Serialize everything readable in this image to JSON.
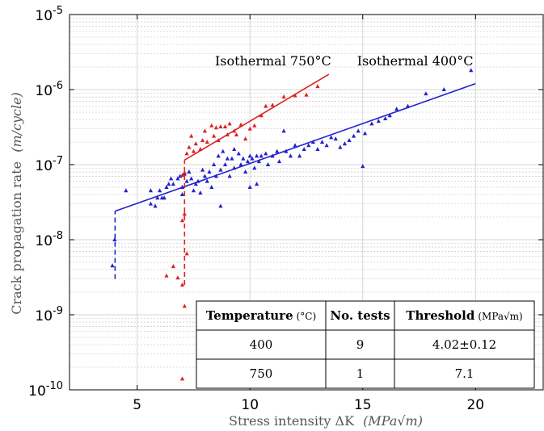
{
  "chart_data": {
    "type": "scatter",
    "x_scale": "linear",
    "y_scale": "log",
    "xlim": [
      2,
      23
    ],
    "ylim": [
      1e-10,
      1e-05
    ],
    "grid": true,
    "xlabel": "Stress intensity ΔK",
    "xlabel_units": "(MPa√m)",
    "ylabel": "Crack propagation rate",
    "ylabel_units": "(m/cycle)",
    "x_ticks": [
      5,
      10,
      15,
      20
    ],
    "x_tick_labels": [
      "5",
      "10",
      "15",
      "20"
    ],
    "y_ticks": [
      1e-10,
      1e-09,
      1e-08,
      1e-07,
      1e-06,
      1e-05
    ],
    "y_tick_labels": [
      {
        "base": "10",
        "exp": "-10"
      },
      {
        "base": "10",
        "exp": "-9"
      },
      {
        "base": "10",
        "exp": "-8"
      },
      {
        "base": "10",
        "exp": "-7"
      },
      {
        "base": "10",
        "exp": "-6"
      },
      {
        "base": "10",
        "exp": "-5"
      }
    ],
    "annotations": [
      {
        "text": "Isothermal 750°C",
        "x": 13.6,
        "y": 2.1e-06,
        "color": "#000000"
      },
      {
        "text": "Isothermal 400°C",
        "x": 19.9,
        "y": 2.1e-06,
        "color": "#000000"
      }
    ],
    "series": [
      {
        "color": "#2222cc",
        "marker": "triangle",
        "fit_line": {
          "x": [
            4.02,
            20.0
          ],
          "y": [
            2.4e-08,
            1.2e-06
          ]
        },
        "threshold_line": {
          "x": 4.02,
          "y_from": 3e-09,
          "y_to": 2.4e-08
        },
        "points": [
          [
            3.9,
            4.5e-09
          ],
          [
            4.0,
            1e-08
          ],
          [
            4.5,
            4.5e-08
          ],
          [
            5.6,
            4.5e-08
          ],
          [
            5.6,
            3e-08
          ],
          [
            5.8,
            2.8e-08
          ],
          [
            5.9,
            3.6e-08
          ],
          [
            6.0,
            4.5e-08
          ],
          [
            6.1,
            3.6e-08
          ],
          [
            6.2,
            3.6e-08
          ],
          [
            6.3,
            5e-08
          ],
          [
            6.4,
            5.5e-08
          ],
          [
            6.5,
            6.5e-08
          ],
          [
            6.6,
            5.5e-08
          ],
          [
            6.8,
            6.5e-08
          ],
          [
            6.9,
            7e-08
          ],
          [
            7.0,
            4e-08
          ],
          [
            7.0,
            5e-08
          ],
          [
            7.1,
            7.5e-08
          ],
          [
            7.2,
            6e-08
          ],
          [
            7.3,
            8e-08
          ],
          [
            7.4,
            6.5e-08
          ],
          [
            7.5,
            4.5e-08
          ],
          [
            7.6,
            5.5e-08
          ],
          [
            7.7,
            6e-08
          ],
          [
            7.8,
            4.2e-08
          ],
          [
            7.9,
            8.5e-08
          ],
          [
            8.0,
            7e-08
          ],
          [
            8.1,
            6e-08
          ],
          [
            8.2,
            8e-08
          ],
          [
            8.3,
            5e-08
          ],
          [
            8.4,
            1e-07
          ],
          [
            8.5,
            7e-08
          ],
          [
            8.6,
            1.3e-07
          ],
          [
            8.7,
            8.5e-08
          ],
          [
            8.7,
            2.8e-08
          ],
          [
            8.8,
            1.5e-07
          ],
          [
            8.9,
            1e-07
          ],
          [
            9.0,
            1.2e-07
          ],
          [
            9.1,
            7e-08
          ],
          [
            9.2,
            1.2e-07
          ],
          [
            9.3,
            9e-08
          ],
          [
            9.3,
            1.6e-07
          ],
          [
            9.5,
            1.4e-07
          ],
          [
            9.6,
            1e-07
          ],
          [
            9.7,
            1.2e-07
          ],
          [
            9.8,
            8e-08
          ],
          [
            9.9,
            1.1e-07
          ],
          [
            10.0,
            5e-08
          ],
          [
            10.0,
            1.3e-07
          ],
          [
            10.1,
            1.2e-07
          ],
          [
            10.2,
            9e-08
          ],
          [
            10.3,
            1.3e-07
          ],
          [
            10.3,
            5.5e-08
          ],
          [
            10.4,
            1.1e-07
          ],
          [
            10.5,
            1.3e-07
          ],
          [
            10.7,
            1.4e-07
          ],
          [
            10.8,
            1e-07
          ],
          [
            11.0,
            1.3e-07
          ],
          [
            11.2,
            1.5e-07
          ],
          [
            11.3,
            1.1e-07
          ],
          [
            11.5,
            2.8e-07
          ],
          [
            11.6,
            1.5e-07
          ],
          [
            11.8,
            1.3e-07
          ],
          [
            12.0,
            1.8e-07
          ],
          [
            12.2,
            1.3e-07
          ],
          [
            12.4,
            1.6e-07
          ],
          [
            12.6,
            1.8e-07
          ],
          [
            12.8,
            2e-07
          ],
          [
            13.0,
            1.6e-07
          ],
          [
            13.2,
            2e-07
          ],
          [
            13.4,
            1.8e-07
          ],
          [
            13.6,
            2.3e-07
          ],
          [
            13.8,
            2.2e-07
          ],
          [
            14.0,
            1.7e-07
          ],
          [
            14.2,
            1.9e-07
          ],
          [
            14.4,
            2.1e-07
          ],
          [
            14.6,
            2.4e-07
          ],
          [
            14.8,
            2.8e-07
          ],
          [
            15.0,
            9.5e-08
          ],
          [
            15.1,
            2.6e-07
          ],
          [
            15.4,
            3.5e-07
          ],
          [
            15.7,
            3.8e-07
          ],
          [
            16.0,
            4.1e-07
          ],
          [
            16.2,
            4.5e-07
          ],
          [
            16.5,
            5.5e-07
          ],
          [
            17.0,
            6e-07
          ],
          [
            17.8,
            8.8e-07
          ],
          [
            18.6,
            1e-06
          ],
          [
            19.8,
            1.8e-06
          ]
        ]
      },
      {
        "color": "#dd2222",
        "marker": "triangle",
        "fit_line": {
          "x": [
            7.1,
            13.5
          ],
          "y": [
            1.15e-07,
            1.6e-06
          ]
        },
        "threshold_line": {
          "x": 7.1,
          "y_from": 2.5e-09,
          "y_to": 1.15e-07
        },
        "points": [
          [
            6.3,
            3.3e-09
          ],
          [
            6.6,
            4.4e-09
          ],
          [
            6.8,
            3.1e-09
          ],
          [
            7.0,
            2.5e-09
          ],
          [
            7.0,
            1.8e-08
          ],
          [
            7.1,
            1.3e-09
          ],
          [
            7.1,
            2.2e-08
          ],
          [
            7.2,
            6.5e-09
          ],
          [
            7.0,
            1.4e-10
          ],
          [
            7.0,
            7.2e-08
          ],
          [
            7.1,
            7.8e-08
          ],
          [
            7.2,
            1.4e-07
          ],
          [
            7.3,
            1.7e-07
          ],
          [
            7.4,
            2.4e-07
          ],
          [
            7.5,
            1.5e-07
          ],
          [
            7.6,
            1.9e-07
          ],
          [
            7.8,
            1.6e-07
          ],
          [
            7.9,
            2.1e-07
          ],
          [
            8.0,
            2.8e-07
          ],
          [
            8.1,
            2e-07
          ],
          [
            8.3,
            3.3e-07
          ],
          [
            8.4,
            2.4e-07
          ],
          [
            8.5,
            3.1e-07
          ],
          [
            8.6,
            2.1e-07
          ],
          [
            8.7,
            3.2e-07
          ],
          [
            8.9,
            3.2e-07
          ],
          [
            9.0,
            2.5e-07
          ],
          [
            9.1,
            3.5e-07
          ],
          [
            9.3,
            2.8e-07
          ],
          [
            9.4,
            2.5e-07
          ],
          [
            9.6,
            3.4e-07
          ],
          [
            9.8,
            2.2e-07
          ],
          [
            10.0,
            3e-07
          ],
          [
            10.2,
            3.3e-07
          ],
          [
            10.5,
            4.5e-07
          ],
          [
            10.7,
            6e-07
          ],
          [
            11.0,
            6.2e-07
          ],
          [
            11.5,
            8e-07
          ],
          [
            12.0,
            8.3e-07
          ],
          [
            12.5,
            8.5e-07
          ],
          [
            13.0,
            1.1e-06
          ]
        ]
      }
    ],
    "table": {
      "headers": [
        {
          "main": "Temperature",
          "unit": "(°C)"
        },
        {
          "main": "No. tests",
          "unit": ""
        },
        {
          "main": "Threshold",
          "unit": "(MPa√m)"
        }
      ],
      "rows": [
        [
          "400",
          "9",
          "4.02±0.12"
        ],
        [
          "750",
          "1",
          "7.1"
        ]
      ]
    }
  }
}
